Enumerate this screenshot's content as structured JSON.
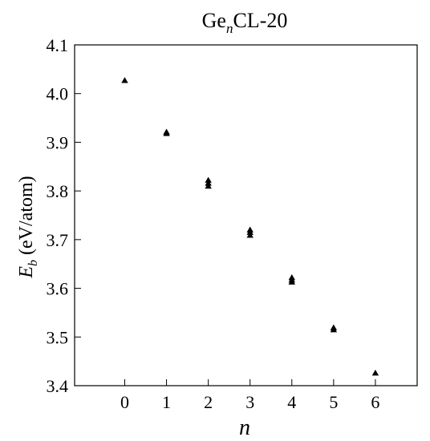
{
  "chart_data": {
    "type": "scatter",
    "title": {
      "prefix": "Ge",
      "subscript": "n",
      "suffix": "CL-20"
    },
    "xlabel": "n",
    "ylabel": {
      "main": "E",
      "subscript": "b",
      "suffix": " (eV/atom)"
    },
    "xlim": [
      -1.2,
      7.0
    ],
    "ylim": [
      3.4,
      4.1
    ],
    "xticks": [
      0,
      1,
      2,
      3,
      4,
      5,
      6
    ],
    "yticks": [
      3.4,
      3.5,
      3.6,
      3.7,
      3.8,
      3.9,
      4.0,
      4.1
    ],
    "ytick_labels": [
      "3.4",
      "3.5",
      "3.6",
      "3.7",
      "3.8",
      "3.9",
      "4.0",
      "4.1"
    ],
    "marker": "triangle",
    "marker_color": "#000000",
    "grid": false,
    "legend": "none",
    "points": [
      {
        "x": 0,
        "y": 4.027
      },
      {
        "x": 1,
        "y": 3.918
      },
      {
        "x": 1,
        "y": 3.921
      },
      {
        "x": 2,
        "y": 3.822
      },
      {
        "x": 2,
        "y": 3.816
      },
      {
        "x": 2,
        "y": 3.81
      },
      {
        "x": 3,
        "y": 3.72
      },
      {
        "x": 3,
        "y": 3.715
      },
      {
        "x": 3,
        "y": 3.709
      },
      {
        "x": 4,
        "y": 3.622
      },
      {
        "x": 4,
        "y": 3.617
      },
      {
        "x": 4,
        "y": 3.613
      },
      {
        "x": 5,
        "y": 3.519
      },
      {
        "x": 5,
        "y": 3.515
      },
      {
        "x": 6,
        "y": 3.426
      }
    ]
  }
}
